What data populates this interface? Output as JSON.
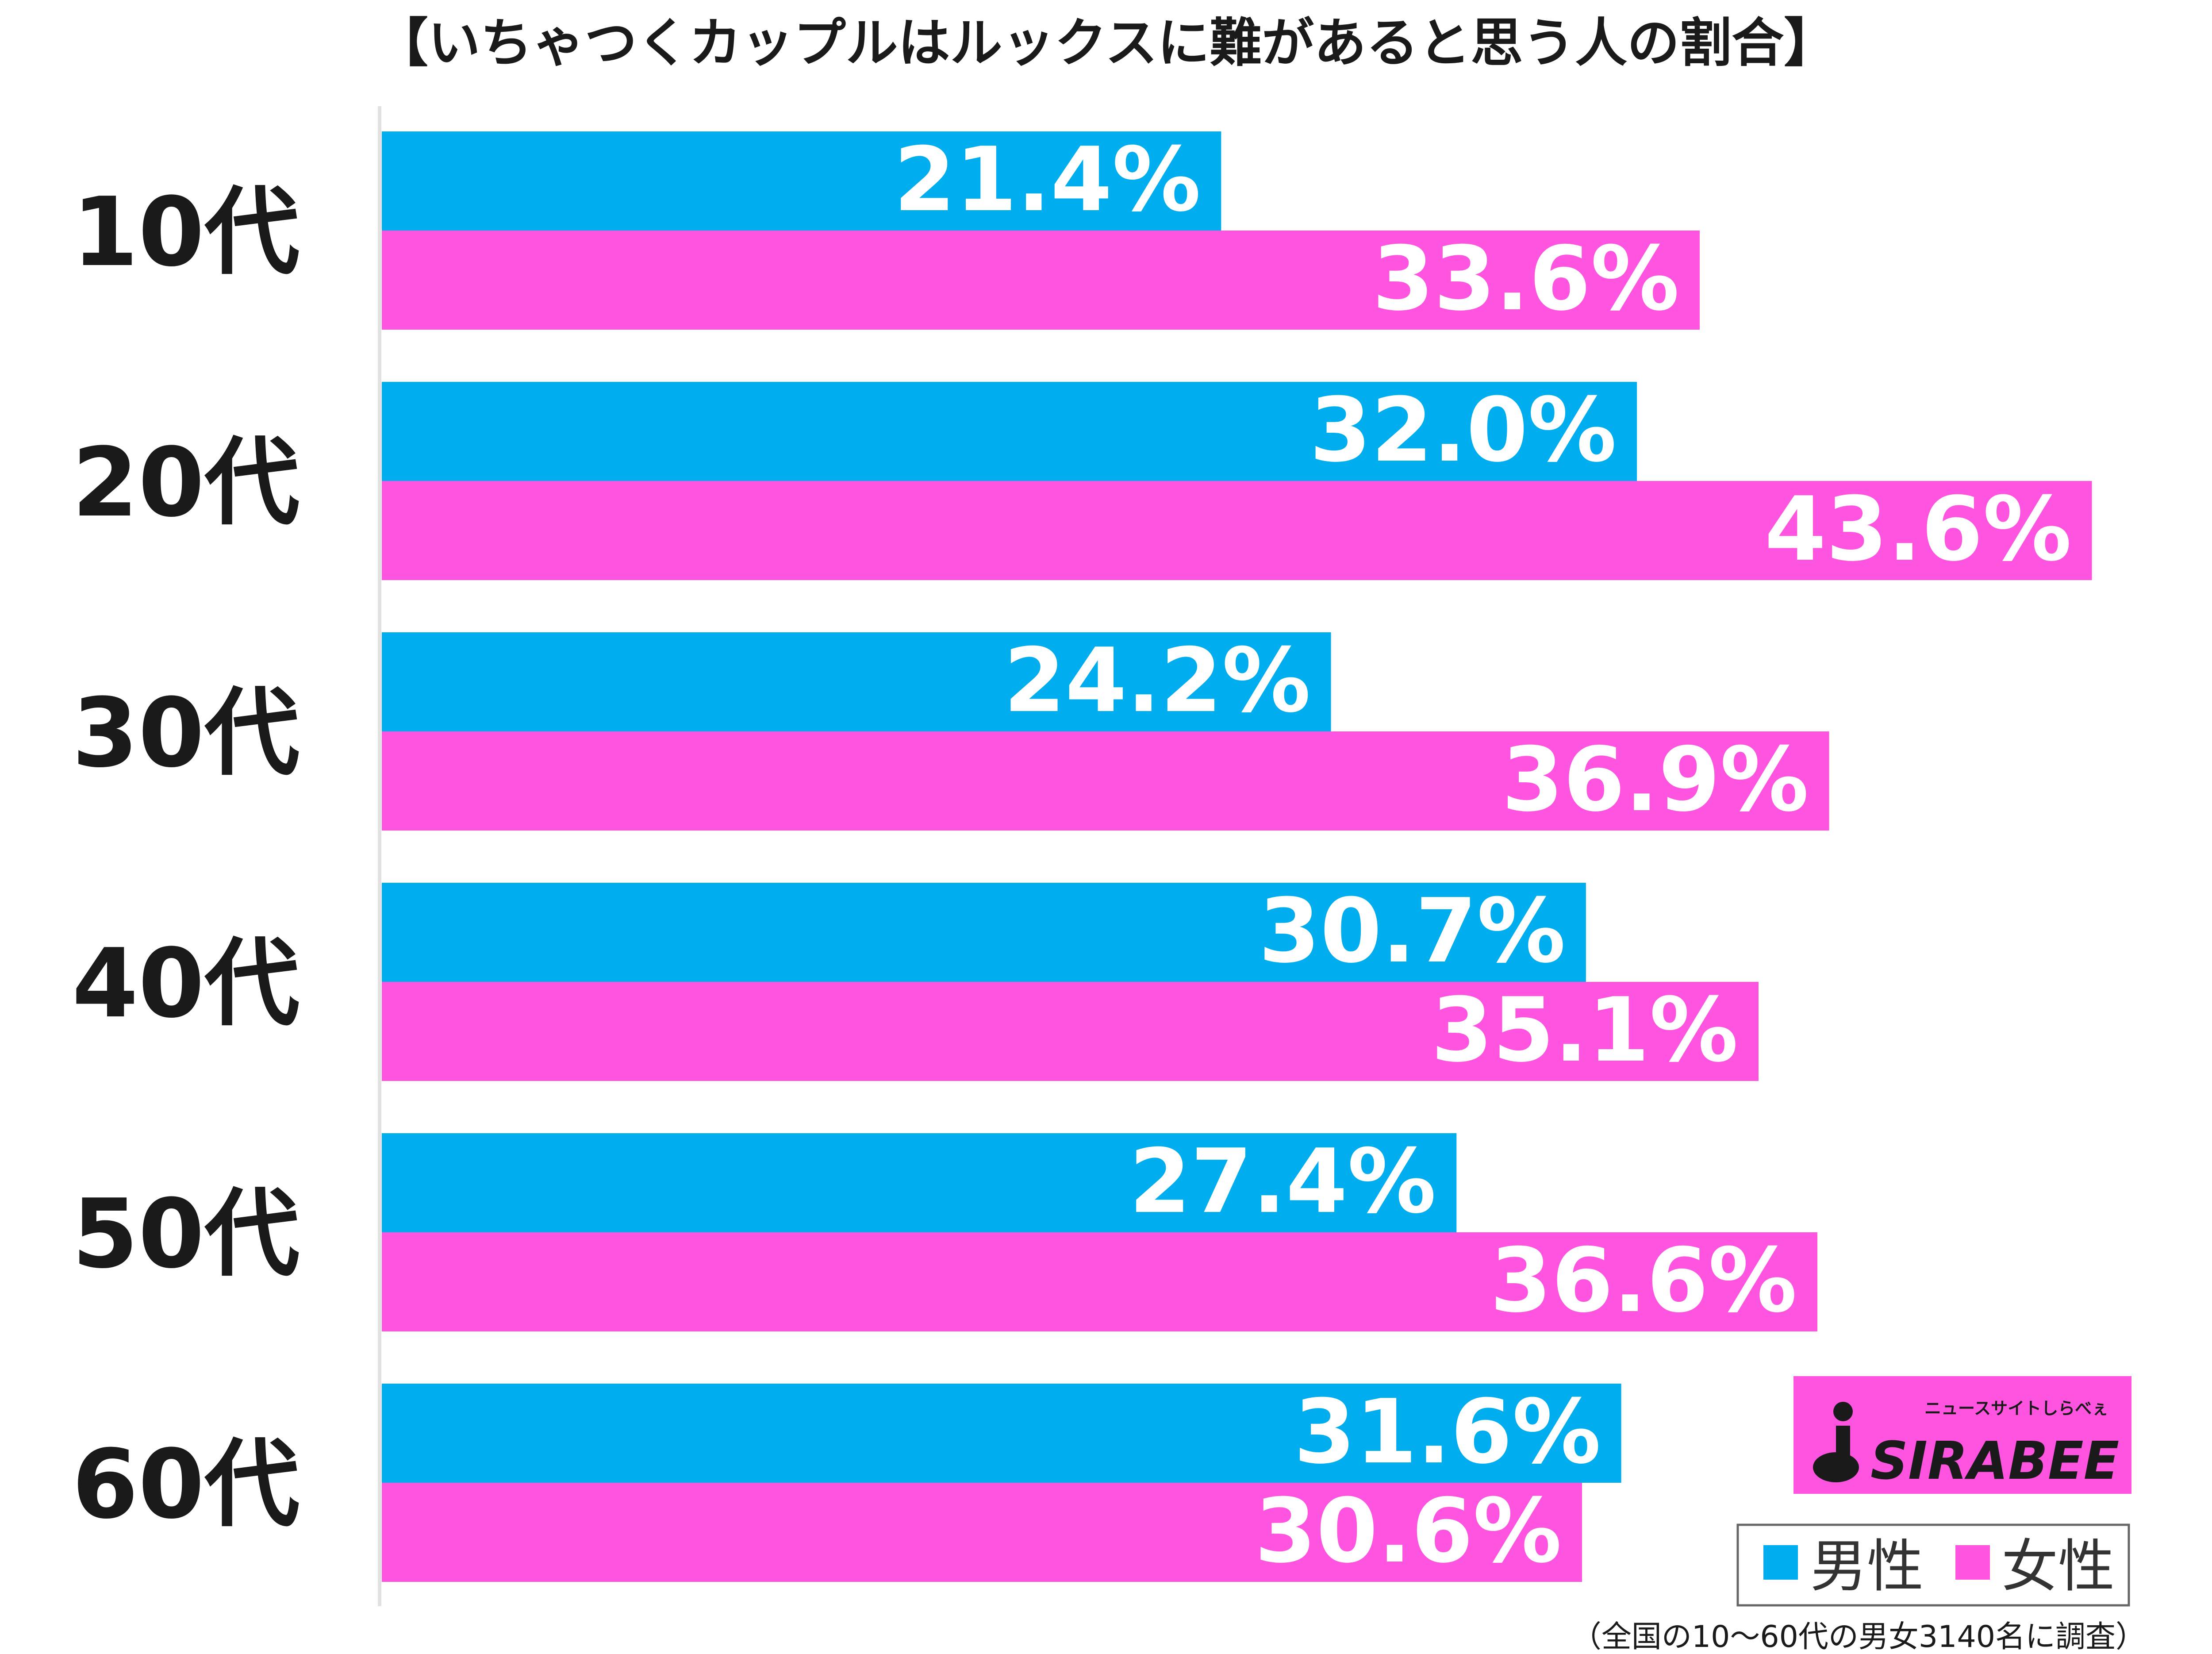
{
  "chart_data": {
    "type": "bar",
    "orientation": "horizontal",
    "title": "【いちゃつくカップルはルックスに難があると思う人の割合】",
    "categories": [
      "10代",
      "20代",
      "30代",
      "40代",
      "50代",
      "60代"
    ],
    "series": [
      {
        "name": "男性",
        "color": "#00aeef",
        "values": [
          21.4,
          32.0,
          24.2,
          30.7,
          27.4,
          31.6
        ]
      },
      {
        "name": "女性",
        "color": "#ff54e0",
        "values": [
          33.6,
          43.6,
          36.9,
          35.1,
          36.6,
          30.6
        ]
      }
    ],
    "value_labels": [
      [
        "21.4%",
        "32.0%",
        "24.2%",
        "30.7%",
        "27.4%",
        "31.6%"
      ],
      [
        "33.6%",
        "43.6%",
        "36.9%",
        "35.1%",
        "36.6%",
        "30.6%"
      ]
    ],
    "xlim": [
      0,
      45
    ],
    "grid": false,
    "legend_position": "bottom-right",
    "note": "（全国の10〜60代の男女3140名に調査）"
  },
  "logo": {
    "tagline": "ニュースサイトしらべぇ",
    "name": "SIRABEE",
    "color": "#ff54e0"
  }
}
